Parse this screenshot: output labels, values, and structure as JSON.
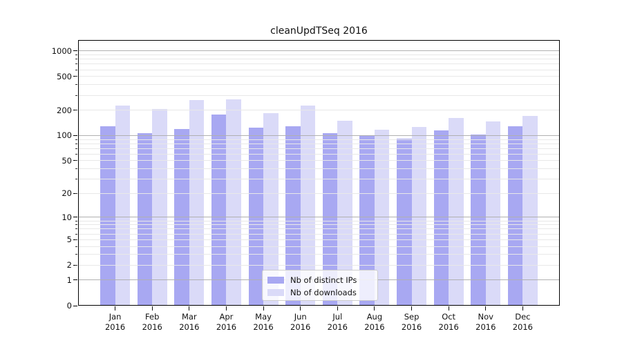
{
  "chart_data": {
    "type": "bar",
    "title": "cleanUpdTSeq 2016",
    "year_label": "2016",
    "months": [
      "Jan",
      "Feb",
      "Mar",
      "Apr",
      "May",
      "Jun",
      "Jul",
      "Aug",
      "Sep",
      "Oct",
      "Nov",
      "Dec"
    ],
    "categories": [
      "Jan 2016",
      "Feb 2016",
      "Mar 2016",
      "Apr 2016",
      "May 2016",
      "Jun 2016",
      "Jul 2016",
      "Aug 2016",
      "Sep 2016",
      "Oct 2016",
      "Nov 2016",
      "Dec 2016"
    ],
    "series": [
      {
        "name": "Nb of distinct IPs",
        "color": "#a8a8f2",
        "values": [
          130,
          106,
          120,
          179,
          124,
          130,
          107,
          100,
          92,
          115,
          103,
          129
        ]
      },
      {
        "name": "Nb of downloads",
        "color": "#dadaf8",
        "values": [
          228,
          205,
          266,
          271,
          186,
          228,
          151,
          118,
          126,
          161,
          147,
          172
        ]
      }
    ],
    "yscale": "log1p",
    "yticks": [
      0,
      1,
      2,
      5,
      10,
      20,
      50,
      100,
      200,
      500,
      1000
    ],
    "ylim": [
      0,
      1365
    ],
    "xlabel": "",
    "ylabel": "",
    "grid": {
      "on": true,
      "drawn_above_bars": true,
      "major_values": [
        1,
        10,
        100,
        1000
      ],
      "minor_values": [
        2,
        3,
        4,
        5,
        6,
        7,
        8,
        9,
        20,
        30,
        40,
        50,
        60,
        70,
        80,
        90,
        200,
        300,
        400,
        500,
        600,
        700,
        800,
        900
      ],
      "major_color": "#b0b0b0",
      "minor_color": "#e8e8e8"
    },
    "legend_position": "lower center"
  }
}
